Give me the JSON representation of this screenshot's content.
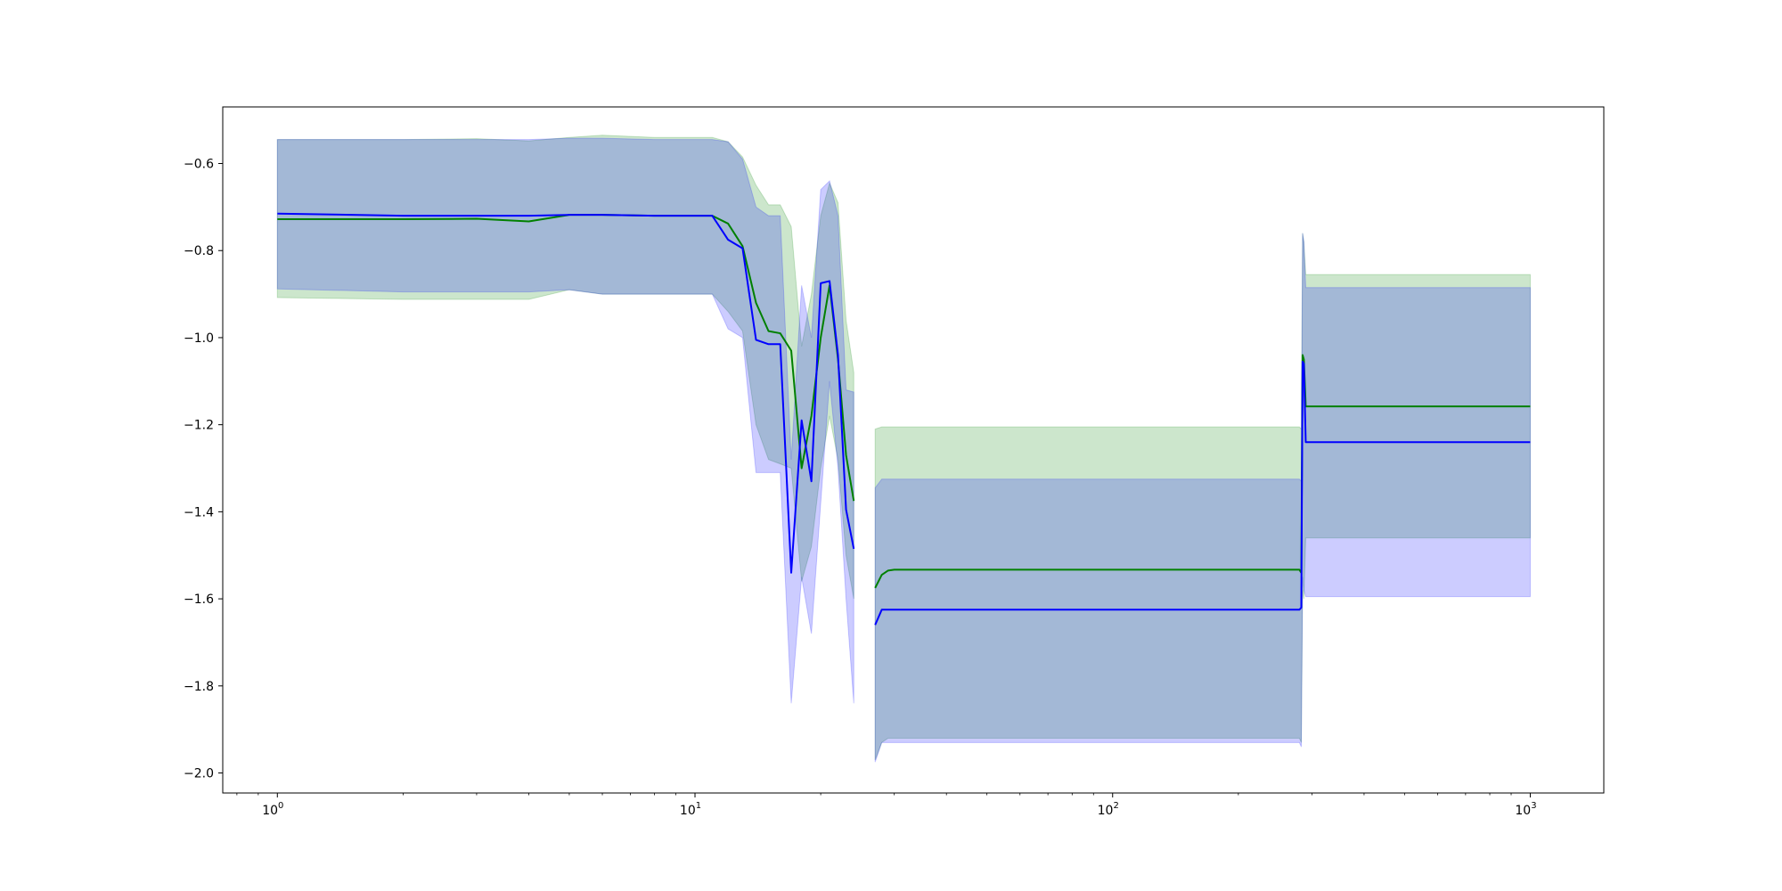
{
  "chart_data": {
    "type": "line",
    "title": "",
    "xlabel": "",
    "ylabel": "",
    "xscale": "log",
    "xlim": [
      0.74,
      1500
    ],
    "ylim": [
      -2.046,
      -0.47
    ],
    "grid": false,
    "legend": "none",
    "x_ticks": [
      {
        "value": 1,
        "base": "10",
        "exp": "0"
      },
      {
        "value": 10,
        "base": "10",
        "exp": "1"
      },
      {
        "value": 100,
        "base": "10",
        "exp": "2"
      },
      {
        "value": 1000,
        "base": "10",
        "exp": "3"
      }
    ],
    "y_ticks": [
      {
        "value": -0.6,
        "label": "−0.6"
      },
      {
        "value": -0.8,
        "label": "−0.8"
      },
      {
        "value": -1.0,
        "label": "−1.0"
      },
      {
        "value": -1.2,
        "label": "−1.2"
      },
      {
        "value": -1.4,
        "label": "−1.4"
      },
      {
        "value": -1.6,
        "label": "−1.6"
      },
      {
        "value": -1.8,
        "label": "−1.8"
      },
      {
        "value": -2.0,
        "label": "−2.0"
      }
    ],
    "series": [
      {
        "color": "#008000",
        "band_color": "#008000",
        "band_opacity": 0.2,
        "segments": [
          {
            "x": [
              1,
              2,
              3,
              4,
              5,
              6,
              8,
              10,
              11,
              12,
              13,
              14,
              15,
              16,
              17,
              18,
              19,
              20,
              21,
              22,
              23,
              24
            ],
            "y": [
              -0.728,
              -0.728,
              -0.727,
              -0.733,
              -0.718,
              -0.718,
              -0.72,
              -0.72,
              -0.72,
              -0.738,
              -0.79,
              -0.92,
              -0.985,
              -0.99,
              -1.03,
              -1.3,
              -1.18,
              -1.0,
              -0.88,
              -1.05,
              -1.27,
              -1.375
            ],
            "lower": [
              -0.908,
              -0.912,
              -0.912,
              -0.912,
              -0.89,
              -0.9,
              -0.9,
              -0.9,
              -0.9,
              -0.94,
              -0.985,
              -1.2,
              -1.28,
              -1.29,
              -1.3,
              -1.56,
              -1.48,
              -1.3,
              -1.18,
              -1.28,
              -1.5,
              -1.6
            ],
            "upper": [
              -0.545,
              -0.545,
              -0.543,
              -0.548,
              -0.54,
              -0.535,
              -0.54,
              -0.54,
              -0.54,
              -0.55,
              -0.585,
              -0.65,
              -0.695,
              -0.695,
              -0.745,
              -1.02,
              -0.9,
              -0.72,
              -0.645,
              -0.69,
              -0.96,
              -1.08
            ]
          },
          {
            "x": [
              27,
              28,
              29,
              30,
              100,
              200,
              280,
              283,
              285,
              287,
              290,
              300,
              500,
              1000
            ],
            "y": [
              -1.575,
              -1.545,
              -1.535,
              -1.533,
              -1.533,
              -1.533,
              -1.533,
              -1.54,
              -1.04,
              -1.05,
              -1.158,
              -1.158,
              -1.158,
              -1.158
            ],
            "lower": [
              -1.97,
              -1.93,
              -1.92,
              -1.92,
              -1.92,
              -1.92,
              -1.92,
              -1.93,
              -1.58,
              -1.6,
              -1.46,
              -1.46,
              -1.46,
              -1.46
            ],
            "upper": [
              -1.21,
              -1.205,
              -1.205,
              -1.205,
              -1.205,
              -1.205,
              -1.205,
              -1.21,
              -0.76,
              -0.78,
              -0.855,
              -0.855,
              -0.855,
              -0.855
            ]
          }
        ]
      },
      {
        "color": "#0000ff",
        "band_color": "#0000ff",
        "band_opacity": 0.2,
        "segments": [
          {
            "x": [
              1,
              2,
              3,
              4,
              5,
              6,
              8,
              10,
              11,
              12,
              13,
              14,
              15,
              16,
              17,
              18,
              19,
              20,
              21,
              22,
              23,
              24
            ],
            "y": [
              -0.715,
              -0.72,
              -0.72,
              -0.72,
              -0.718,
              -0.718,
              -0.72,
              -0.72,
              -0.72,
              -0.775,
              -0.795,
              -1.005,
              -1.015,
              -1.015,
              -1.54,
              -1.19,
              -1.33,
              -0.875,
              -0.87,
              -1.04,
              -1.395,
              -1.485
            ],
            "lower": [
              -0.888,
              -0.895,
              -0.895,
              -0.895,
              -0.89,
              -0.9,
              -0.9,
              -0.9,
              -0.9,
              -0.98,
              -1.0,
              -1.31,
              -1.31,
              -1.31,
              -1.84,
              -1.55,
              -1.68,
              -1.38,
              -1.1,
              -1.3,
              -1.6,
              -1.84
            ],
            "upper": [
              -0.545,
              -0.545,
              -0.545,
              -0.545,
              -0.542,
              -0.542,
              -0.545,
              -0.545,
              -0.545,
              -0.55,
              -0.59,
              -0.7,
              -0.72,
              -0.72,
              -1.28,
              -0.88,
              -1.0,
              -0.66,
              -0.64,
              -0.72,
              -1.12,
              -1.125
            ]
          },
          {
            "x": [
              27,
              28,
              29,
              30,
              100,
              200,
              280,
              283,
              285,
              287,
              290,
              300,
              500,
              1000
            ],
            "y": [
              -1.66,
              -1.625,
              -1.625,
              -1.625,
              -1.625,
              -1.625,
              -1.625,
              -1.62,
              -1.055,
              -1.06,
              -1.24,
              -1.24,
              -1.24,
              -1.24
            ],
            "lower": [
              -1.975,
              -1.93,
              -1.93,
              -1.93,
              -1.93,
              -1.93,
              -1.93,
              -1.94,
              -1.55,
              -1.58,
              -1.595,
              -1.595,
              -1.595,
              -1.595
            ],
            "upper": [
              -1.345,
              -1.325,
              -1.325,
              -1.325,
              -1.325,
              -1.325,
              -1.325,
              -1.33,
              -0.76,
              -0.78,
              -0.885,
              -0.885,
              -0.885,
              -0.885
            ]
          }
        ]
      }
    ]
  }
}
